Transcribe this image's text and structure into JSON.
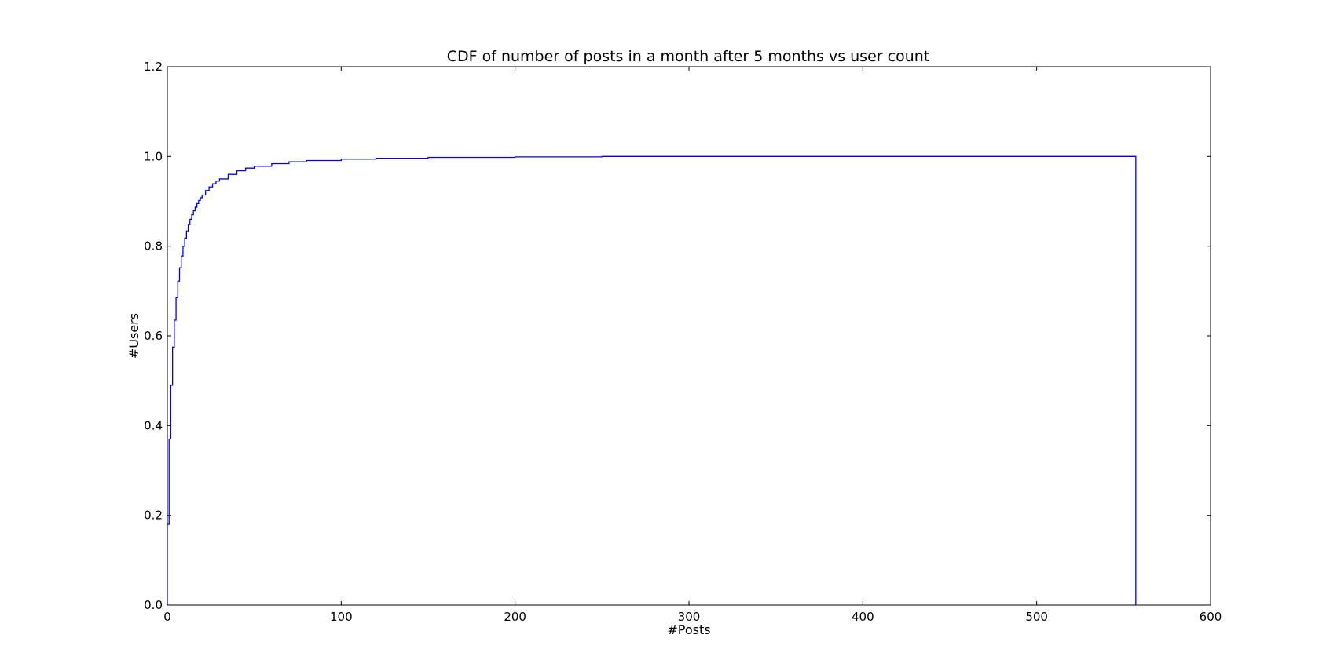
{
  "chart_data": {
    "type": "line",
    "title": "CDF of number of posts in a month after 5 months vs user count",
    "xlabel": "#Posts",
    "ylabel": "#Users",
    "xlim": [
      0,
      600
    ],
    "ylim": [
      0,
      1.2
    ],
    "xticks": [
      "0",
      "100",
      "200",
      "300",
      "400",
      "500",
      "600"
    ],
    "yticks": [
      "0.0",
      "0.2",
      "0.4",
      "0.6",
      "0.8",
      "1.0",
      "1.2"
    ],
    "grid": false,
    "legend": "none",
    "line_style": "steps",
    "color": "#0000ff",
    "series": [
      {
        "x": [
          0,
          1,
          2,
          3,
          4,
          5,
          6,
          7,
          8,
          9,
          10,
          11,
          12,
          13,
          14,
          15,
          16,
          17,
          18,
          19,
          20,
          22,
          24,
          26,
          28,
          30,
          35,
          40,
          45,
          50,
          60,
          70,
          80,
          100,
          120,
          150,
          200,
          250,
          300,
          557,
          557
        ],
        "y": [
          0.18,
          0.37,
          0.49,
          0.575,
          0.635,
          0.685,
          0.722,
          0.752,
          0.778,
          0.8,
          0.818,
          0.834,
          0.848,
          0.86,
          0.87,
          0.879,
          0.887,
          0.895,
          0.902,
          0.908,
          0.914,
          0.924,
          0.932,
          0.939,
          0.945,
          0.95,
          0.96,
          0.968,
          0.974,
          0.978,
          0.984,
          0.988,
          0.991,
          0.994,
          0.996,
          0.998,
          0.999,
          1.0,
          1.0,
          1.0,
          0.0
        ]
      }
    ]
  }
}
